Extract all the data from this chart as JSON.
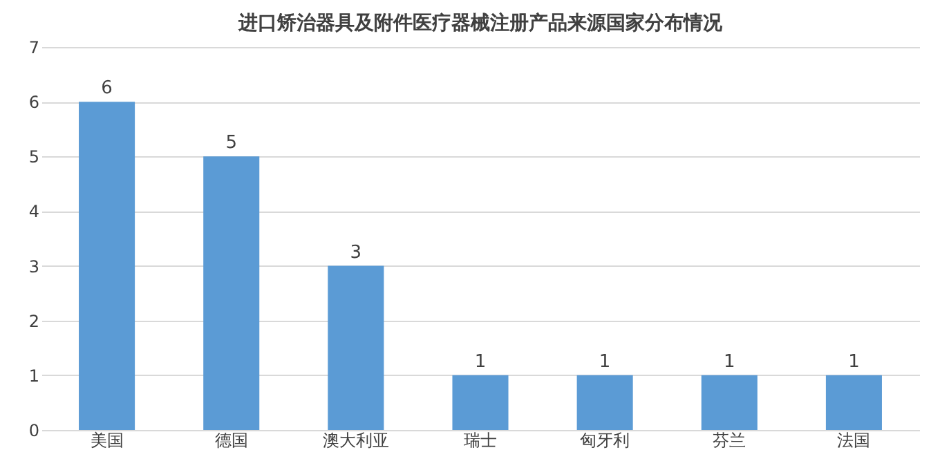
{
  "chart_data": {
    "type": "bar",
    "title": "进口矫治器具及附件医疗器械注册产品来源国家分布情况",
    "categories": [
      "美国",
      "德国",
      "澳大利亚",
      "瑞士",
      "匈牙利",
      "芬兰",
      "法国"
    ],
    "values": [
      6,
      5,
      3,
      1,
      1,
      1,
      1
    ],
    "color": "#5b9bd5",
    "ylim": [
      0,
      7
    ],
    "yticks": [
      0,
      1,
      2,
      3,
      4,
      5,
      6,
      7
    ],
    "grid": "y",
    "data_labels": true
  }
}
